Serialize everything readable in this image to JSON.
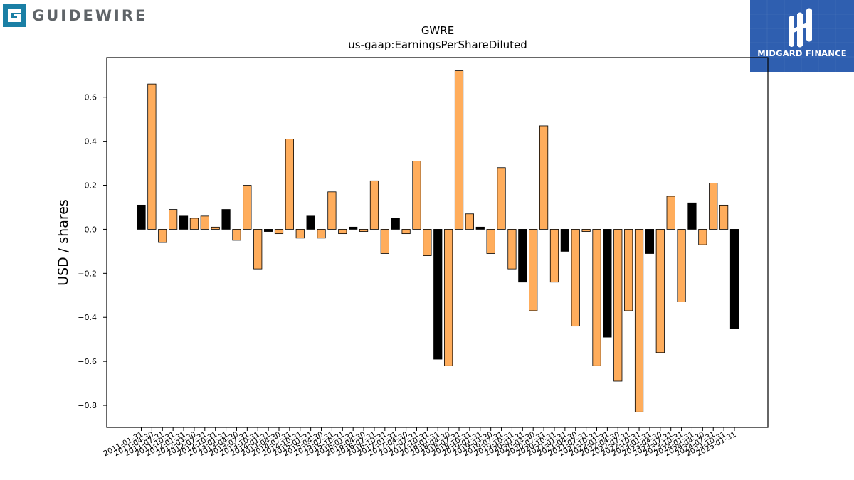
{
  "logos": {
    "left_text": "GUIDEWIRE",
    "right_text": "MIDGARD FINANCE",
    "left_color": "#5f6468",
    "left_accent": "#1a7fa5",
    "right_bg": "#2f5fb0"
  },
  "chart_data": {
    "type": "bar",
    "title": "GWRE",
    "subtitle": "us-gaap:EarningsPerShareDiluted",
    "xlabel": "",
    "ylabel": "USD / shares",
    "ylim": [
      -0.9,
      0.78
    ],
    "yticks": [
      0.6,
      0.4,
      0.2,
      0.0,
      -0.2,
      -0.4,
      -0.6,
      -0.8
    ],
    "ytick_labels": [
      "0.6",
      "0.4",
      "0.2",
      "0.0",
      "−0.2",
      "−0.4",
      "−0.6",
      "−0.8"
    ],
    "grid": false,
    "legend": false,
    "colors": {
      "highlight": "#000000",
      "default": "#ffad5c",
      "edge": "#000000"
    },
    "categories": [
      "2011-01-31",
      "2011-04-30",
      "2011-07-31",
      "2011-10-31",
      "2012-01-31",
      "2012-04-30",
      "2012-07-31",
      "2012-10-31",
      "2013-01-31",
      "2013-04-30",
      "2013-07-31",
      "2013-10-31",
      "2014-01-31",
      "2014-04-30",
      "2014-07-31",
      "2014-10-31",
      "2015-01-31",
      "2015-04-30",
      "2015-07-31",
      "2015-10-31",
      "2016-01-31",
      "2016-04-30",
      "2016-07-31",
      "2016-10-31",
      "2017-01-31",
      "2017-04-30",
      "2017-07-31",
      "2017-10-31",
      "2018-01-31",
      "2018-04-30",
      "2018-07-31",
      "2018-10-31",
      "2019-01-31",
      "2019-04-30",
      "2019-07-31",
      "2019-10-31",
      "2020-01-31",
      "2020-04-30",
      "2020-07-31",
      "2020-10-31",
      "2021-01-31",
      "2021-04-30",
      "2021-07-31",
      "2021-10-31",
      "2022-01-31",
      "2022-04-30",
      "2022-07-31",
      "2022-10-31",
      "2023-01-31",
      "2023-04-30",
      "2023-07-31",
      "2023-10-31",
      "2024-01-31",
      "2024-04-30",
      "2024-07-31",
      "2024-10-31",
      "2025-01-31"
    ],
    "values": [
      0.11,
      0.66,
      -0.06,
      0.09,
      0.06,
      0.05,
      0.06,
      0.01,
      0.09,
      -0.05,
      0.2,
      -0.18,
      -0.01,
      -0.02,
      0.41,
      -0.04,
      0.06,
      -0.04,
      0.17,
      -0.02,
      0.01,
      -0.01,
      0.22,
      -0.11,
      0.05,
      -0.02,
      0.31,
      -0.12,
      -0.59,
      -0.62,
      0.72,
      0.07,
      0.01,
      -0.11,
      0.28,
      -0.18,
      -0.24,
      -0.37,
      0.47,
      -0.24,
      -0.1,
      -0.44,
      -0.01,
      -0.62,
      -0.49,
      -0.69,
      -0.37,
      -0.83,
      -0.11,
      -0.56,
      0.15,
      -0.33,
      0.12,
      -0.07,
      0.21,
      0.11,
      -0.45
    ],
    "highlight": [
      true,
      false,
      false,
      false,
      true,
      false,
      false,
      false,
      true,
      false,
      false,
      false,
      true,
      false,
      false,
      false,
      true,
      false,
      false,
      false,
      true,
      false,
      false,
      false,
      true,
      false,
      false,
      false,
      true,
      false,
      false,
      false,
      true,
      false,
      false,
      false,
      true,
      false,
      false,
      false,
      true,
      false,
      false,
      false,
      true,
      false,
      false,
      false,
      true,
      false,
      false,
      false,
      true,
      false,
      false,
      false,
      true
    ]
  }
}
